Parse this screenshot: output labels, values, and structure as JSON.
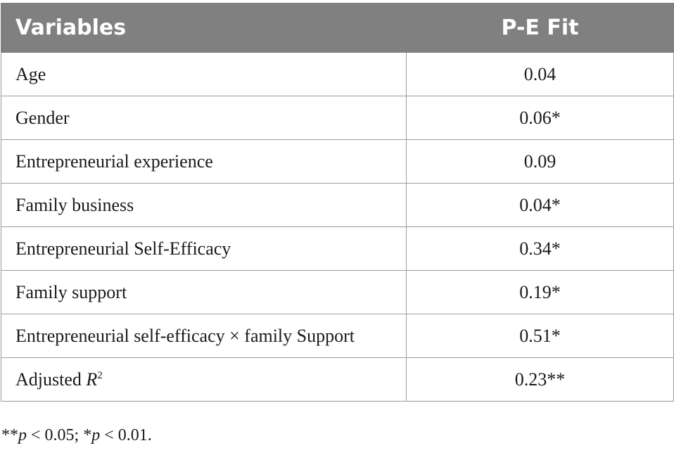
{
  "table": {
    "headers": [
      "Variables",
      "P-E Fit"
    ],
    "rows": [
      {
        "variable": "Age",
        "value": "0.04"
      },
      {
        "variable": "Gender",
        "value": "0.06*"
      },
      {
        "variable": "Entrepreneurial experience",
        "value": "0.09"
      },
      {
        "variable": "Family business",
        "value": "0.04*"
      },
      {
        "variable": "Entrepreneurial Self-Efficacy",
        "value": "0.34*"
      },
      {
        "variable": "Family support",
        "value": "0.19*"
      },
      {
        "variable": "Entrepreneurial self-efficacy × family Support",
        "value": "0.51*"
      }
    ],
    "last_row": {
      "label_prefix": "Adjusted ",
      "label_symbol": "R",
      "label_superscript": "2",
      "value": "0.23**"
    }
  },
  "footnote": {
    "part1_stars": "**",
    "part1_var": "p",
    "part1_rest": " < 0.05; *",
    "part2_var": "p",
    "part2_rest": " < 0.01."
  }
}
